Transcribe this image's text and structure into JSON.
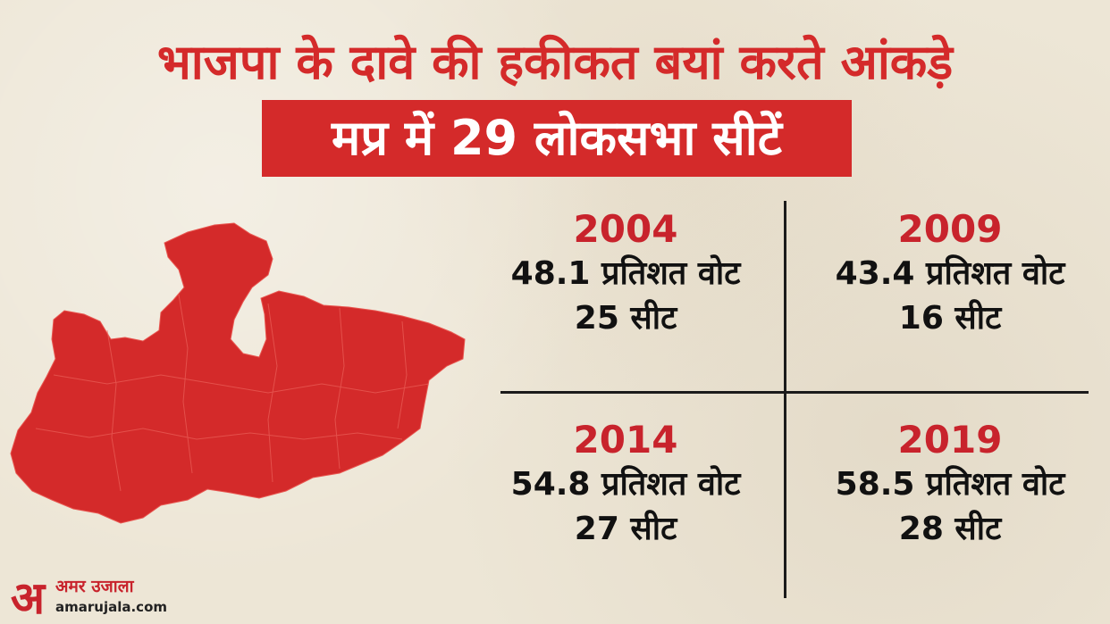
{
  "header": {
    "title": "भाजपा के दावे की हकीकत बयां करते आंकड़े",
    "subtitle": "मप्र में 29 लोकसभा सीटें"
  },
  "map": {
    "icon": "madhya-pradesh-map-icon",
    "color": "#d42a2a"
  },
  "stats": [
    {
      "year": "2004",
      "vote": "48.1 प्रतिशत वोट",
      "seats": "25 सीट"
    },
    {
      "year": "2009",
      "vote": "43.4 प्रतिशत वोट",
      "seats": "16 सीट"
    },
    {
      "year": "2014",
      "vote": "54.8 प्रतिशत वोट",
      "seats": "27 सीट"
    },
    {
      "year": "2019",
      "vote": "58.5 प्रतिशत वोट",
      "seats": "28 सीट"
    }
  ],
  "logo": {
    "mark": "अ",
    "name": "अमर उजाला",
    "url": "amarujala.com"
  },
  "colors": {
    "accent": "#d42a2a",
    "year": "#c8232c",
    "text": "#111111"
  }
}
